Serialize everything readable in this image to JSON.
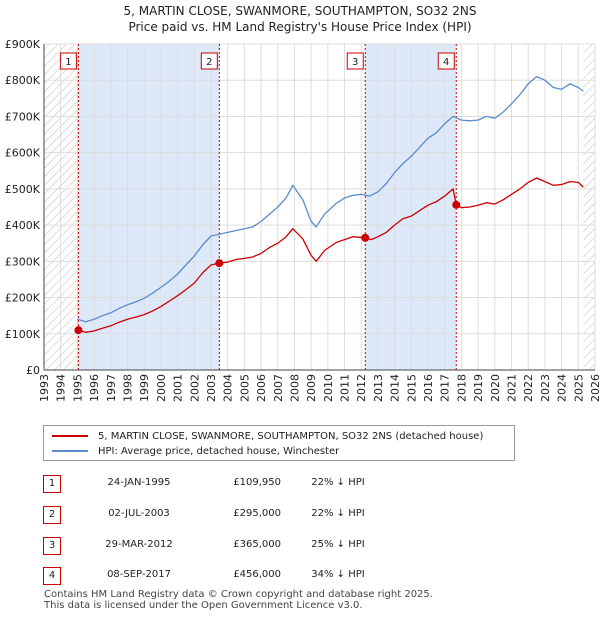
{
  "title_line1": "5, MARTIN CLOSE, SWANMORE, SOUTHAMPTON, SO32 2NS",
  "title_line2": "Price paid vs. HM Land Registry's House Price Index (HPI)",
  "colors": {
    "property": "#cc0000",
    "hpi": "#5b8ccc",
    "shade": "#dde8f8",
    "hatch": "#bbbbbb",
    "grid": "#dddddd"
  },
  "chart_data": {
    "type": "line",
    "x_range": [
      1993,
      2026
    ],
    "ylim": [
      0,
      900000
    ],
    "y_ticks": [
      0,
      100000,
      200000,
      300000,
      400000,
      500000,
      600000,
      700000,
      800000,
      900000
    ],
    "y_tick_labels": [
      "£0",
      "£100K",
      "£200K",
      "£300K",
      "£400K",
      "£500K",
      "£600K",
      "£700K",
      "£800K",
      "£900K"
    ],
    "x_ticks": [
      1993,
      1994,
      1995,
      1996,
      1997,
      1998,
      1999,
      2000,
      2001,
      2002,
      2003,
      2004,
      2005,
      2006,
      2007,
      2008,
      2009,
      2010,
      2011,
      2012,
      2013,
      2014,
      2015,
      2016,
      2017,
      2018,
      2019,
      2020,
      2021,
      2022,
      2023,
      2024,
      2025,
      2026
    ],
    "data_start": 1995.06,
    "data_end": 2025.3,
    "series": [
      {
        "name": "5, MARTIN CLOSE, SWANMORE, SOUTHAMPTON, SO32 2NS (detached house)",
        "color": "#cc0000",
        "x": [
          1995.06,
          1995.5,
          1996.0,
          1996.5,
          1997.0,
          1997.5,
          1998.0,
          1998.5,
          1999.0,
          1999.5,
          2000.0,
          2000.5,
          2001.0,
          2001.5,
          2002.0,
          2002.5,
          2003.0,
          2003.5,
          2004.0,
          2004.5,
          2005.0,
          2005.5,
          2006.0,
          2006.5,
          2007.0,
          2007.5,
          2007.9,
          2008.5,
          2009.0,
          2009.3,
          2009.8,
          2010.5,
          2011.0,
          2011.5,
          2012.24,
          2012.6,
          2013.0,
          2013.5,
          2014.0,
          2014.5,
          2015.0,
          2015.5,
          2016.0,
          2016.5,
          2017.0,
          2017.5,
          2017.69,
          2018.0,
          2018.5,
          2019.0,
          2019.5,
          2020.0,
          2020.5,
          2021.0,
          2021.5,
          2022.0,
          2022.5,
          2023.0,
          2023.5,
          2024.0,
          2024.5,
          2025.0,
          2025.3
        ],
        "values": [
          109950,
          104000,
          108000,
          115000,
          122000,
          132000,
          140000,
          146000,
          153000,
          163000,
          175000,
          190000,
          205000,
          222000,
          240000,
          268000,
          290000,
          295000,
          298000,
          305000,
          308000,
          312000,
          322000,
          338000,
          350000,
          368000,
          390000,
          362000,
          316000,
          300000,
          330000,
          352000,
          360000,
          368000,
          365000,
          360000,
          368000,
          380000,
          400000,
          418000,
          425000,
          440000,
          455000,
          465000,
          480000,
          500000,
          456000,
          448000,
          450000,
          455000,
          462000,
          458000,
          470000,
          485000,
          500000,
          518000,
          530000,
          520000,
          510000,
          512000,
          520000,
          518000,
          505000
        ]
      },
      {
        "name": "HPI: Average price, detached house, Winchester",
        "color": "#5b8ccc",
        "x": [
          1995.0,
          1995.5,
          1996.0,
          1996.5,
          1997.0,
          1997.5,
          1998.0,
          1998.5,
          1999.0,
          1999.5,
          2000.0,
          2000.5,
          2001.0,
          2001.5,
          2002.0,
          2002.5,
          2003.0,
          2003.5,
          2004.0,
          2004.5,
          2005.0,
          2005.5,
          2006.0,
          2006.5,
          2007.0,
          2007.5,
          2007.9,
          2008.5,
          2009.0,
          2009.3,
          2009.8,
          2010.5,
          2011.0,
          2011.5,
          2012.0,
          2012.5,
          2013.0,
          2013.5,
          2014.0,
          2014.5,
          2015.0,
          2015.5,
          2016.0,
          2016.5,
          2017.0,
          2017.5,
          2018.0,
          2018.5,
          2019.0,
          2019.5,
          2020.0,
          2020.5,
          2021.0,
          2021.5,
          2022.0,
          2022.5,
          2023.0,
          2023.5,
          2024.0,
          2024.5,
          2025.0,
          2025.3
        ],
        "values": [
          140000,
          133000,
          140000,
          150000,
          158000,
          170000,
          180000,
          188000,
          198000,
          212000,
          228000,
          245000,
          265000,
          290000,
          315000,
          345000,
          370000,
          375000,
          380000,
          385000,
          390000,
          395000,
          410000,
          430000,
          450000,
          475000,
          510000,
          470000,
          410000,
          395000,
          430000,
          460000,
          475000,
          482000,
          485000,
          480000,
          492000,
          515000,
          545000,
          570000,
          590000,
          615000,
          640000,
          655000,
          680000,
          700000,
          690000,
          688000,
          690000,
          700000,
          695000,
          712000,
          735000,
          760000,
          790000,
          810000,
          800000,
          780000,
          775000,
          790000,
          780000,
          770000
        ]
      }
    ],
    "sales": [
      {
        "label": "1",
        "x": 1995.06,
        "value": 109950
      },
      {
        "label": "2",
        "x": 2003.5,
        "value": 295000
      },
      {
        "label": "3",
        "x": 2012.24,
        "value": 365000
      },
      {
        "label": "4",
        "x": 2017.69,
        "value": 456000
      }
    ]
  },
  "legend": {
    "property": "5, MARTIN CLOSE, SWANMORE, SOUTHAMPTON, SO32 2NS (detached house)",
    "hpi": "HPI: Average price, detached house, Winchester"
  },
  "sales_table": [
    {
      "num": "1",
      "date": "24-JAN-1995",
      "price": "£109,950",
      "hpi": "22% ↓ HPI"
    },
    {
      "num": "2",
      "date": "02-JUL-2003",
      "price": "£295,000",
      "hpi": "22% ↓ HPI"
    },
    {
      "num": "3",
      "date": "29-MAR-2012",
      "price": "£365,000",
      "hpi": "25% ↓ HPI"
    },
    {
      "num": "4",
      "date": "08-SEP-2017",
      "price": "£456,000",
      "hpi": "34% ↓ HPI"
    }
  ],
  "footer": {
    "line1": "Contains HM Land Registry data © Crown copyright and database right 2025.",
    "line2": "This data is licensed under the Open Government Licence v3.0."
  }
}
